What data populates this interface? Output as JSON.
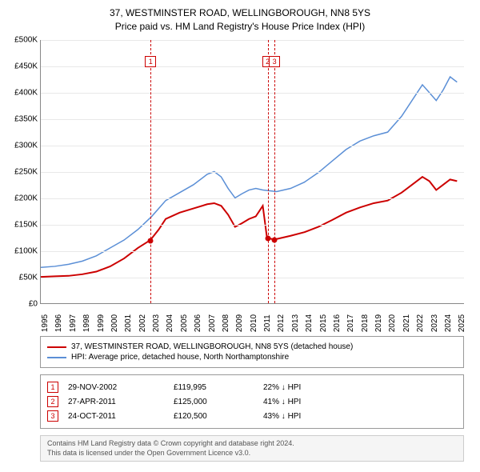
{
  "title": {
    "line1": "37, WESTMINSTER ROAD, WELLINGBOROUGH, NN8 5YS",
    "line2": "Price paid vs. HM Land Registry's House Price Index (HPI)"
  },
  "chart": {
    "type": "line",
    "background_color": "#ffffff",
    "grid_color": "#e8e8e8",
    "axis_color": "#888888",
    "font_size_ticks": 10,
    "x_range": [
      1995,
      2025.5
    ],
    "y_range": [
      0,
      500000
    ],
    "y_ticks": [
      0,
      50000,
      100000,
      150000,
      200000,
      250000,
      300000,
      350000,
      400000,
      450000,
      500000
    ],
    "y_tick_labels": [
      "£0",
      "£50K",
      "£100K",
      "£150K",
      "£200K",
      "£250K",
      "£300K",
      "£350K",
      "£400K",
      "£450K",
      "£500K"
    ],
    "x_ticks": [
      1995,
      1996,
      1997,
      1998,
      1999,
      2000,
      2001,
      2002,
      2003,
      2004,
      2005,
      2006,
      2007,
      2008,
      2009,
      2010,
      2011,
      2012,
      2013,
      2014,
      2015,
      2016,
      2017,
      2018,
      2019,
      2020,
      2021,
      2022,
      2023,
      2024,
      2025
    ],
    "series": [
      {
        "name": "property",
        "color": "#cc0000",
        "width": 2,
        "points": [
          [
            1995,
            50000
          ],
          [
            1996,
            51000
          ],
          [
            1997,
            52000
          ],
          [
            1998,
            55000
          ],
          [
            1999,
            60000
          ],
          [
            2000,
            70000
          ],
          [
            2001,
            85000
          ],
          [
            2002,
            105000
          ],
          [
            2002.9,
            119995
          ],
          [
            2003.5,
            140000
          ],
          [
            2004,
            160000
          ],
          [
            2005,
            172000
          ],
          [
            2006,
            180000
          ],
          [
            2007,
            188000
          ],
          [
            2007.5,
            190000
          ],
          [
            2008,
            185000
          ],
          [
            2008.5,
            168000
          ],
          [
            2009,
            145000
          ],
          [
            2009.5,
            152000
          ],
          [
            2010,
            160000
          ],
          [
            2010.5,
            165000
          ],
          [
            2011,
            185000
          ],
          [
            2011.3,
            125000
          ],
          [
            2011.8,
            120500
          ],
          [
            2012,
            122000
          ],
          [
            2012.5,
            125000
          ],
          [
            2013,
            128000
          ],
          [
            2014,
            135000
          ],
          [
            2015,
            145000
          ],
          [
            2016,
            158000
          ],
          [
            2017,
            172000
          ],
          [
            2018,
            182000
          ],
          [
            2019,
            190000
          ],
          [
            2020,
            195000
          ],
          [
            2021,
            210000
          ],
          [
            2022,
            230000
          ],
          [
            2022.5,
            240000
          ],
          [
            2023,
            232000
          ],
          [
            2023.5,
            215000
          ],
          [
            2024,
            225000
          ],
          [
            2024.5,
            235000
          ],
          [
            2025,
            232000
          ]
        ]
      },
      {
        "name": "hpi",
        "color": "#5b8fd6",
        "width": 1.5,
        "points": [
          [
            1995,
            68000
          ],
          [
            1996,
            70000
          ],
          [
            1997,
            74000
          ],
          [
            1998,
            80000
          ],
          [
            1999,
            90000
          ],
          [
            2000,
            105000
          ],
          [
            2001,
            120000
          ],
          [
            2002,
            140000
          ],
          [
            2003,
            165000
          ],
          [
            2004,
            195000
          ],
          [
            2005,
            210000
          ],
          [
            2006,
            225000
          ],
          [
            2007,
            245000
          ],
          [
            2007.5,
            250000
          ],
          [
            2008,
            240000
          ],
          [
            2008.5,
            218000
          ],
          [
            2009,
            200000
          ],
          [
            2009.5,
            208000
          ],
          [
            2010,
            215000
          ],
          [
            2010.5,
            218000
          ],
          [
            2011,
            215000
          ],
          [
            2012,
            212000
          ],
          [
            2013,
            218000
          ],
          [
            2014,
            230000
          ],
          [
            2015,
            248000
          ],
          [
            2016,
            270000
          ],
          [
            2017,
            292000
          ],
          [
            2018,
            308000
          ],
          [
            2019,
            318000
          ],
          [
            2020,
            325000
          ],
          [
            2021,
            355000
          ],
          [
            2022,
            395000
          ],
          [
            2022.5,
            415000
          ],
          [
            2023,
            400000
          ],
          [
            2023.5,
            385000
          ],
          [
            2024,
            405000
          ],
          [
            2024.5,
            430000
          ],
          [
            2025,
            420000
          ]
        ]
      }
    ],
    "sale_markers": [
      {
        "n": "1",
        "x": 2002.9,
        "y": 119995
      },
      {
        "n": "2",
        "x": 2011.32,
        "y": 125000
      },
      {
        "n": "3",
        "x": 2011.81,
        "y": 120500
      }
    ],
    "marker_box_color": "#cc0000",
    "point_color": "#cc0000"
  },
  "legend": {
    "items": [
      {
        "color": "#cc0000",
        "label": "37, WESTMINSTER ROAD, WELLINGBOROUGH, NN8 5YS (detached house)"
      },
      {
        "color": "#5b8fd6",
        "label": "HPI: Average price, detached house, North Northamptonshire"
      }
    ]
  },
  "sales": [
    {
      "n": "1",
      "date": "29-NOV-2002",
      "price": "£119,995",
      "diff": "22% ↓ HPI"
    },
    {
      "n": "2",
      "date": "27-APR-2011",
      "price": "£125,000",
      "diff": "41% ↓ HPI"
    },
    {
      "n": "3",
      "date": "24-OCT-2011",
      "price": "£120,500",
      "diff": "43% ↓ HPI"
    }
  ],
  "footer": {
    "line1": "Contains HM Land Registry data © Crown copyright and database right 2024.",
    "line2": "This data is licensed under the Open Government Licence v3.0."
  }
}
